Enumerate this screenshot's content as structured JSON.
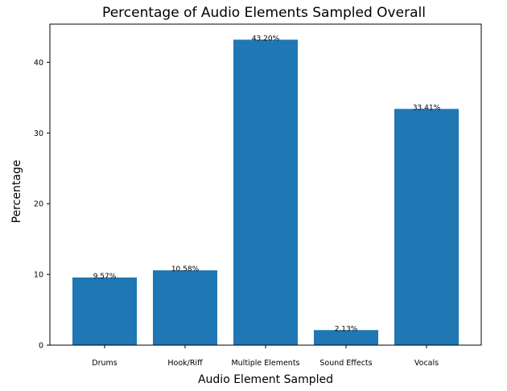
{
  "chart_data": {
    "type": "bar",
    "title": "Percentage of Audio Elements Sampled Overall",
    "xlabel": "Audio Element Sampled",
    "ylabel": "Percentage",
    "categories": [
      "Drums",
      "Hook/Riff",
      "Multiple Elements",
      "Sound Effects",
      "Vocals"
    ],
    "values": [
      9.57,
      10.58,
      43.2,
      2.13,
      33.41
    ],
    "data_labels": [
      "9.57%",
      "10.58%",
      "43.20%",
      "2.13%",
      "33.41%"
    ],
    "ylim": [
      0,
      45.4
    ],
    "yticks": [
      0,
      10,
      20,
      30,
      40
    ],
    "bar_color": "#1f77b4",
    "grid": false,
    "legend": "none"
  }
}
